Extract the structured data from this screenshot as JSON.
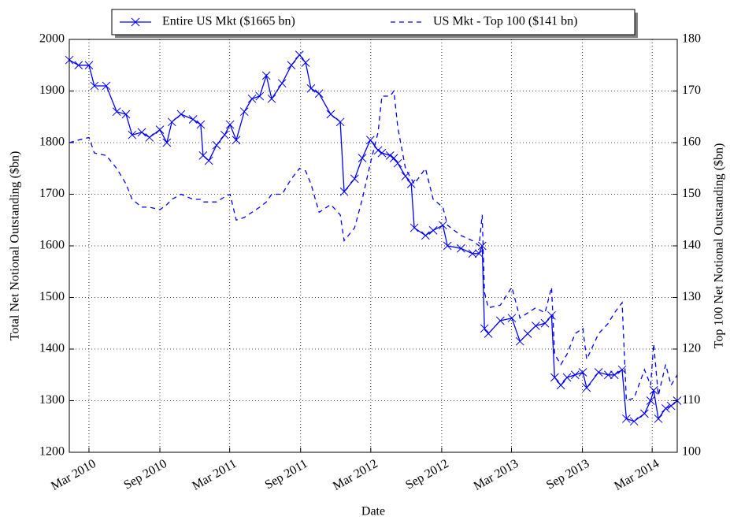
{
  "chart_data": {
    "type": "line",
    "xlabel": "Date",
    "ylabel": "Total Net Notional Outstanding ($bn)",
    "y2label": "Top 100 Net Notional Outstanding ($bn)",
    "grid": true,
    "legend": "top",
    "xlim": [
      "2010-01-09",
      "2014-05-05"
    ],
    "xticks": [
      {
        "value": "2010-03-01",
        "label": "Mar 2010"
      },
      {
        "value": "2010-09-01",
        "label": "Sep 2010"
      },
      {
        "value": "2011-03-01",
        "label": "Mar 2011"
      },
      {
        "value": "2011-09-01",
        "label": "Sep 2011"
      },
      {
        "value": "2012-03-01",
        "label": "Mar 2012"
      },
      {
        "value": "2012-09-01",
        "label": "Sep 2012"
      },
      {
        "value": "2013-03-01",
        "label": "Mar 2013"
      },
      {
        "value": "2013-09-01",
        "label": "Sep 2013"
      },
      {
        "value": "2014-03-01",
        "label": "Mar 2014"
      }
    ],
    "ylim": [
      1200,
      2000
    ],
    "yticks": [
      1200,
      1300,
      1400,
      1500,
      1600,
      1700,
      1800,
      1900,
      2000
    ],
    "y2lim": [
      100,
      180
    ],
    "y2ticks": [
      100,
      110,
      120,
      130,
      140,
      150,
      160,
      170,
      180
    ],
    "x": [
      "2010-01-09",
      "2010-02-02",
      "2010-03-01",
      "2010-03-15",
      "2010-04-15",
      "2010-05-12",
      "2010-06-05",
      "2010-06-21",
      "2010-07-16",
      "2010-08-05",
      "2010-09-01",
      "2010-09-19",
      "2010-10-02",
      "2010-10-26",
      "2010-11-26",
      "2010-12-16",
      "2010-12-22",
      "2011-01-06",
      "2011-01-26",
      "2011-02-16",
      "2011-03-02",
      "2011-03-18",
      "2011-04-08",
      "2011-04-28",
      "2011-05-18",
      "2011-06-04",
      "2011-06-18",
      "2011-07-15",
      "2011-08-08",
      "2011-08-29",
      "2011-09-14",
      "2011-09-28",
      "2011-10-19",
      "2011-11-18",
      "2011-12-13",
      "2011-12-23",
      "2012-01-19",
      "2012-02-08",
      "2012-02-29",
      "2012-03-20",
      "2012-03-30",
      "2012-04-20",
      "2012-04-30",
      "2012-05-10",
      "2012-05-30",
      "2012-06-14",
      "2012-06-22",
      "2012-07-21",
      "2012-08-10",
      "2012-09-04",
      "2012-09-16",
      "2012-10-21",
      "2012-11-20",
      "2012-12-07",
      "2012-12-15",
      "2012-12-21",
      "2012-12-31",
      "2013-01-31",
      "2013-03-02",
      "2013-03-23",
      "2013-04-12",
      "2013-05-03",
      "2013-05-27",
      "2013-06-13",
      "2013-06-21",
      "2013-07-07",
      "2013-07-23",
      "2013-08-13",
      "2013-09-02",
      "2013-09-12",
      "2013-10-13",
      "2013-11-07",
      "2013-11-23",
      "2013-12-13",
      "2013-12-24",
      "2014-01-13",
      "2014-02-09",
      "2014-02-25",
      "2014-03-05",
      "2014-03-17",
      "2014-04-05",
      "2014-04-19",
      "2014-05-05"
    ],
    "series": [
      {
        "name": "Entire US Mkt ($1665 bn)",
        "color": "#0000ff",
        "marker": "x",
        "dash": false,
        "values": [
          1960,
          1950,
          1950,
          1910,
          1910,
          1860,
          1855,
          1815,
          1820,
          1810,
          1825,
          1800,
          1840,
          1855,
          1845,
          1835,
          1775,
          1765,
          1795,
          1815,
          1835,
          1805,
          1860,
          1885,
          1890,
          1930,
          1885,
          1915,
          1950,
          1970,
          1955,
          1905,
          1895,
          1855,
          1840,
          1705,
          1730,
          1770,
          1805,
          1785,
          1780,
          1775,
          1770,
          1760,
          1735,
          1720,
          1635,
          1620,
          1630,
          1640,
          1600,
          1595,
          1585,
          1585,
          1600,
          1440,
          1430,
          1455,
          1460,
          1415,
          1430,
          1445,
          1450,
          1465,
          1345,
          1330,
          1345,
          1350,
          1355,
          1325,
          1355,
          1350,
          1350,
          1360,
          1265,
          1260,
          1275,
          1300,
          1320,
          1265,
          1285,
          1290,
          1300
        ]
      },
      {
        "name": "US Mkt - Top 100 ($141 bn)",
        "color": "#0000ff",
        "dash": true,
        "axis": "y2",
        "values": [
          160,
          160.5,
          161,
          158,
          157.5,
          155,
          152,
          149,
          147.5,
          147.5,
          147,
          148,
          149,
          150,
          149,
          149,
          148.5,
          148.5,
          148.5,
          149.5,
          150,
          145,
          145.5,
          146.5,
          147.5,
          148.5,
          150,
          150,
          153,
          155,
          154.5,
          152,
          146.5,
          148,
          146,
          141,
          143.5,
          149,
          156,
          162,
          169,
          169,
          170,
          163,
          155,
          153,
          152,
          155,
          149,
          147.5,
          144,
          142,
          141,
          140,
          146,
          131,
          128,
          128.5,
          132,
          126,
          127,
          128,
          127,
          132,
          119,
          117,
          119,
          123,
          124,
          118,
          123,
          125,
          127,
          129,
          110,
          110.5,
          116,
          113,
          121,
          111,
          117,
          113,
          115
        ]
      }
    ]
  }
}
